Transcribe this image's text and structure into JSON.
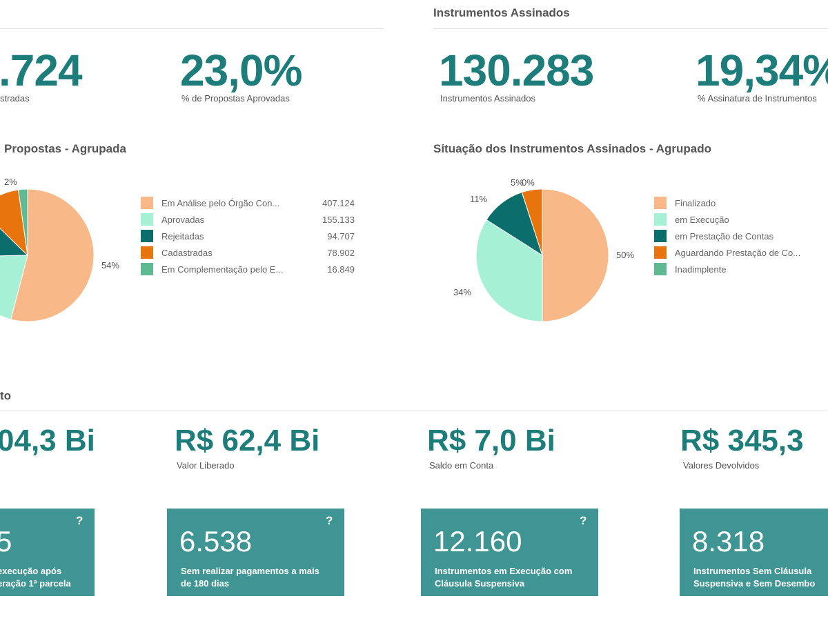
{
  "sections": {
    "instruments_title": "Instrumentos Assinados",
    "financial_title_fragment": "to"
  },
  "kpis": {
    "proposals_cadastradas": {
      "value": ".724",
      "label": "stradas"
    },
    "proposals_aprovadas": {
      "value": "23,0%",
      "label": "% de Propostas Aprovadas"
    },
    "instrumentos_assinados": {
      "value": "130.283",
      "label": "Instrumentos Assinados"
    },
    "assinatura_pct": {
      "value": "19,34%",
      "label": "% Assinatura de Instrumentos"
    }
  },
  "chart_left": {
    "title": "Propostas - Agrupada",
    "legend": [
      {
        "label": "Em Análise pelo Órgão Con...",
        "value": "407.124",
        "color": "#f8b888"
      },
      {
        "label": "Aprovadas",
        "value": "155.133",
        "color": "#a6f1d5"
      },
      {
        "label": "Rejeitadas",
        "value": "94.707",
        "color": "#0b6d6c"
      },
      {
        "label": "Cadastradas",
        "value": "78.902",
        "color": "#e8740d"
      },
      {
        "label": "Em Complementação pelo E...",
        "value": "16.849",
        "color": "#5fba93"
      }
    ],
    "pct_labels": {
      "a": "54%",
      "b": "2%"
    }
  },
  "chart_right": {
    "title": "Situação dos Instrumentos Assinados - Agrupado",
    "legend": [
      {
        "label": "Finalizado",
        "color": "#f8b888"
      },
      {
        "label": "em Execução",
        "color": "#a6f1d5"
      },
      {
        "label": "em Prestação de Contas",
        "color": "#0b6d6c"
      },
      {
        "label": "Aguardando Prestação de Co...",
        "color": "#e8740d"
      },
      {
        "label": "Inadimplente",
        "color": "#5fba93"
      }
    ],
    "pct_labels": {
      "a": "50%",
      "b": "34%",
      "c": "11%",
      "d": "5%",
      "e": "0%"
    }
  },
  "chart_data": [
    {
      "type": "pie",
      "title": "Propostas - Agrupada",
      "slices": [
        {
          "name": "Em Análise pelo Órgão Con...",
          "value": 407124,
          "color": "#f8b888"
        },
        {
          "name": "Aprovadas",
          "value": 155133,
          "color": "#a6f1d5"
        },
        {
          "name": "Rejeitadas",
          "value": 94707,
          "color": "#0b6d6c"
        },
        {
          "name": "Cadastradas",
          "value": 78902,
          "color": "#e8740d"
        },
        {
          "name": "Em Complementação pelo E...",
          "value": 16849,
          "color": "#5fba93"
        }
      ],
      "legend_position": "right"
    },
    {
      "type": "pie",
      "title": "Situação dos Instrumentos Assinados - Agrupado",
      "slices": [
        {
          "name": "Finalizado",
          "value": 50,
          "color": "#f8b888"
        },
        {
          "name": "em Execução",
          "value": 34,
          "color": "#a6f1d5"
        },
        {
          "name": "em Prestação de Contas",
          "value": 11,
          "color": "#0b6d6c"
        },
        {
          "name": "Aguardando Prestação de Co...",
          "value": 5,
          "color": "#e8740d"
        },
        {
          "name": "Inadimplente",
          "value": 0,
          "color": "#5fba93"
        }
      ],
      "legend_position": "right"
    }
  ],
  "money": {
    "valor_total": {
      "value": "04,3 Bi"
    },
    "valor_liberado": {
      "value": "R$ 62,4 Bi",
      "label": "Valor Liberado"
    },
    "saldo_conta": {
      "value": "R$ 7,0 Bi",
      "label": "Saldo em Conta"
    },
    "valores_devolvidos": {
      "value": "R$ 345,3",
      "label": "Valores Devolvidos"
    }
  },
  "cards": [
    {
      "value": "5",
      "desc_l1": "execução após",
      "desc_l2": "eração 1ª parcela",
      "help": "?"
    },
    {
      "value": "6.538",
      "desc_l1": "Sem realizar pagamentos a mais",
      "desc_l2": "de 180 dias",
      "help": "?"
    },
    {
      "value": "12.160",
      "desc_l1": "Instrumentos em Execução com",
      "desc_l2": "Cláusula Suspensiva",
      "help": "?"
    },
    {
      "value": "8.318",
      "desc_l1": "Instrumentos Sem Cláusula",
      "desc_l2": "Suspensiva e Sem Desembo",
      "help": ""
    }
  ]
}
